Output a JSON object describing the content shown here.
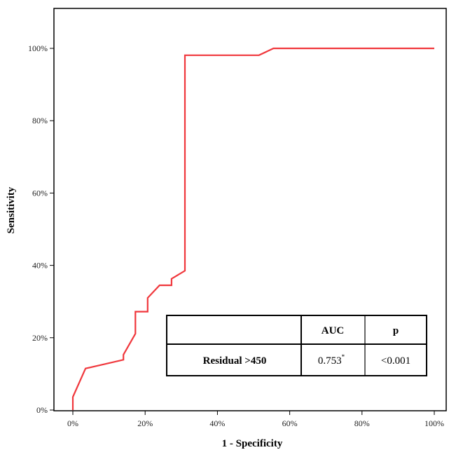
{
  "chart_data": {
    "type": "line",
    "xlabel": "1 - Specificity",
    "ylabel": "Sensitivity",
    "xlim": [
      0,
      100
    ],
    "ylim": [
      0,
      100
    ],
    "x_ticks": [
      "0%",
      "20%",
      "40%",
      "60%",
      "80%",
      "100%"
    ],
    "y_ticks": [
      "0%",
      "20%",
      "40%",
      "60%",
      "80%",
      "100%"
    ],
    "grid": false,
    "series": [
      {
        "color": "#f0373c",
        "x": [
          0,
          0,
          3.5,
          14,
          14,
          17.3,
          17.3,
          20.7,
          20.7,
          24,
          27.3,
          27.3,
          31,
          31,
          51.5,
          55.5,
          100
        ],
        "y": [
          0,
          3.6,
          11.5,
          13.9,
          15.3,
          21.1,
          27.2,
          27.2,
          31,
          34.5,
          34.5,
          36.3,
          38.5,
          98.1,
          98.1,
          100,
          100
        ]
      }
    ],
    "table": {
      "headers": [
        "",
        "AUC",
        "p"
      ],
      "rows": [
        {
          "label": "Residual >450",
          "auc": "0.753",
          "auc_mark": "*",
          "p": "<0.001"
        }
      ]
    }
  }
}
